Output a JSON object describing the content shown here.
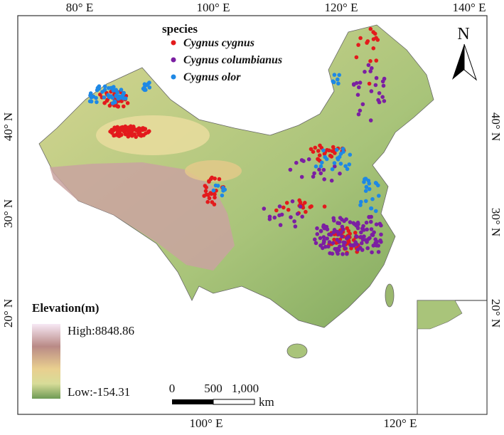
{
  "map": {
    "top_ticks": [
      "80° E",
      "100° E",
      "120° E",
      "140° E"
    ],
    "bottom_ticks": [
      "100° E",
      "120° E"
    ],
    "left_ticks": [
      "40° N",
      "30° N",
      "20° N"
    ],
    "right_ticks": [
      "40° N",
      "30° N",
      "20° N"
    ],
    "legend_title": "species",
    "species": [
      {
        "name": "Cygnus cygnus",
        "color": "#e31a1c"
      },
      {
        "name": "Cygnus columbianus",
        "color": "#7b1fa2"
      },
      {
        "name": "Cygnus olor",
        "color": "#1e88e5"
      }
    ],
    "elevation": {
      "title": "Elevation(m)",
      "high": "High:8848.86",
      "low": "Low:-154.31"
    },
    "scale_bar": {
      "labels": [
        "0",
        "500",
        "1,000"
      ],
      "unit": "km"
    },
    "north": "N"
  }
}
